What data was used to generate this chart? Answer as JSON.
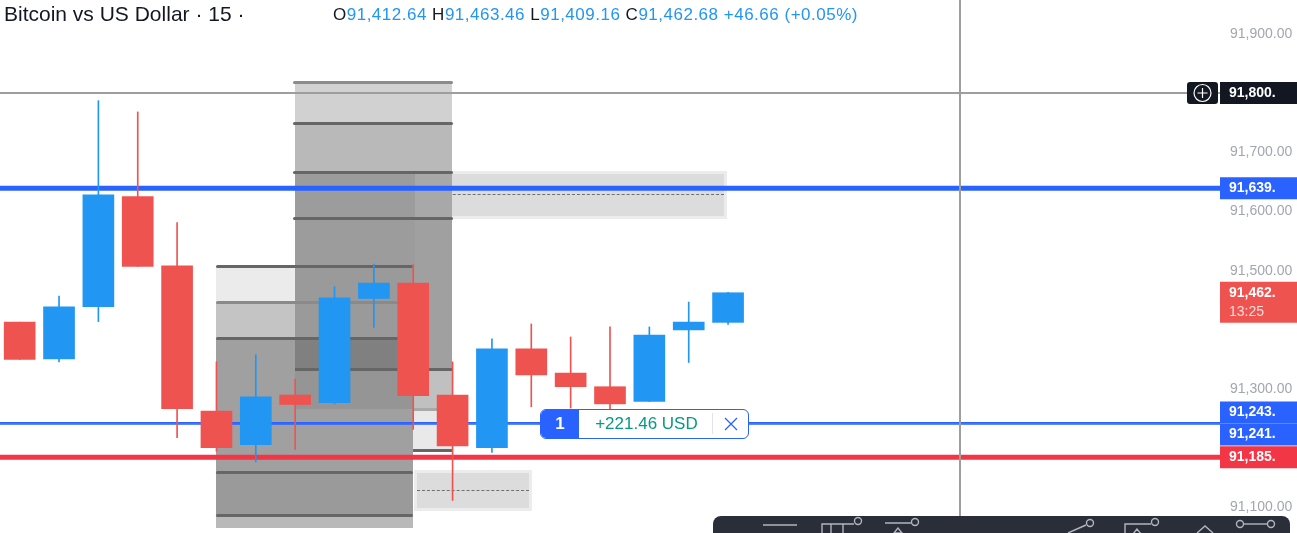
{
  "chart_data": {
    "type": "candlestick",
    "title": "Bitcoin vs US Dollar · 15 ·",
    "subtitle": "O91,412.64 H91,463.46 L91,409.16 C91,462.68 +46.66 (+0.05%)",
    "categories": [
      null,
      null,
      null,
      null,
      null,
      null,
      null,
      null,
      null,
      null,
      null,
      null,
      null,
      null,
      null,
      null,
      null,
      null,
      null,
      null,
      null,
      null,
      null,
      null,
      null,
      null,
      null,
      null,
      null,
      null,
      null
    ],
    "ohlc": [
      [
        91413,
        91413,
        91350,
        91350
      ],
      [
        91351,
        91457,
        91346,
        91439
      ],
      [
        91439,
        91787,
        91414,
        91628
      ],
      [
        91625,
        91768,
        91507,
        91507
      ],
      [
        91508,
        91581,
        91218,
        91267
      ],
      [
        91263,
        91346,
        91195,
        91201
      ],
      [
        91206,
        91358,
        91177,
        91287
      ],
      [
        91290,
        91317,
        91198,
        91274
      ],
      [
        91277,
        91473,
        91275,
        91454
      ],
      [
        91453,
        91511,
        91404,
        91479
      ],
      [
        91479,
        91510,
        91232,
        91289
      ],
      [
        91290,
        91346,
        91112,
        91204
      ],
      [
        91201,
        91385,
        91193,
        91368
      ],
      [
        91368,
        91410,
        91270,
        91324
      ],
      [
        91327,
        91388,
        91268,
        91304
      ],
      [
        91304,
        91405,
        91266,
        91275
      ],
      [
        91279,
        91405,
        91279,
        91391
      ],
      [
        91400,
        91447,
        91345,
        91413
      ],
      [
        91412.64,
        91463.46,
        91409.16,
        91462.68
      ],
      null,
      null,
      null,
      null,
      null,
      null,
      null,
      null,
      null,
      null,
      null,
      null
    ],
    "colors": [
      "#ef5350",
      "#2196f3",
      "#2196f3",
      "#ef5350",
      "#ef5350",
      "#ef5350",
      "#2196f3",
      "#ef5350",
      "#2196f3",
      "#2196f3",
      "#ef5350",
      "#ef5350",
      "#2196f3",
      "#ef5350",
      "#ef5350",
      "#ef5350",
      "#2196f3",
      "#2196f3",
      "#2196f3",
      null,
      null,
      null,
      null,
      null,
      null,
      null,
      null,
      null,
      null,
      null,
      null
    ],
    "ylim": [
      91057,
      91957
    ],
    "yticks": [
      {
        "value": 91100,
        "label": "91,100.00"
      },
      {
        "value": 91300,
        "label": "91,300.00"
      },
      {
        "value": 91500,
        "label": "91,500.00"
      },
      {
        "value": 91600,
        "label": "91,600.00"
      },
      {
        "value": 91700,
        "label": "91,700.00"
      },
      {
        "value": 91900,
        "label": "91,900.00"
      }
    ],
    "ref_lines": [
      {
        "axis": "y",
        "value": 91800,
        "label": "91,800.",
        "color": "#9e9e9e"
      },
      {
        "axis": "y",
        "value": 91639,
        "label": "91,639.",
        "color": "#2962ff"
      },
      {
        "axis": "y",
        "value": 91243,
        "label": "91,243.",
        "color": "#2962ff"
      },
      {
        "axis": "y",
        "value": 91241,
        "label": "91,241.",
        "color": "#2962ff"
      },
      {
        "axis": "y",
        "value": 91185,
        "label": "91,185.",
        "color": "#f23645"
      }
    ],
    "annotations": [
      "91,462.",
      "13:25",
      {
        "text": "1",
        "y": 91241
      },
      {
        "text": "+221.46 USD",
        "y": 91241
      }
    ],
    "grid": false
  }
}
